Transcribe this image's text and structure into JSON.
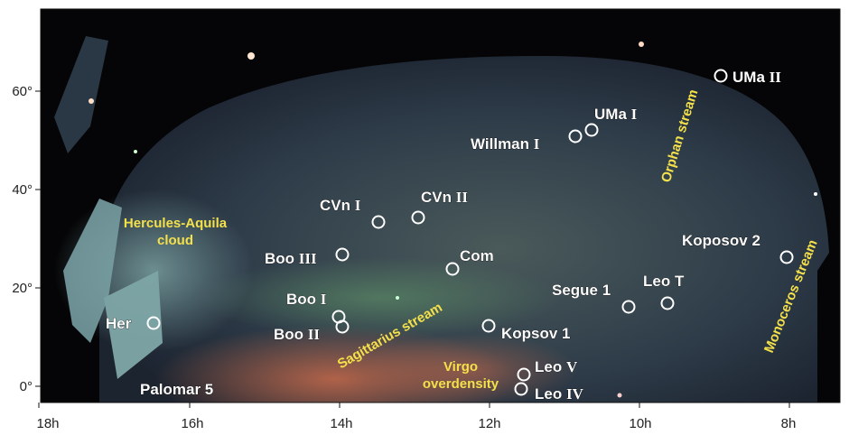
{
  "map": {
    "x_axis": {
      "ticks": [
        "18h",
        "16h",
        "14h",
        "12h",
        "10h",
        "8h"
      ]
    },
    "y_axis": {
      "ticks": [
        "0°",
        "20°",
        "40°",
        "60°"
      ]
    },
    "colors": {
      "background": "#050507",
      "sky_glow": "#3a4a55",
      "label_white": "#ffffff",
      "label_yellow": "#f3e04a",
      "circle": "#ffffff"
    },
    "objects": [
      {
        "name": "UMa",
        "numeral": "II"
      },
      {
        "name": "UMa",
        "numeral": "I"
      },
      {
        "name": "Willman",
        "numeral": "I"
      },
      {
        "name": "CVn",
        "numeral": "I"
      },
      {
        "name": "CVn",
        "numeral": "II"
      },
      {
        "name": "Boo",
        "numeral": "III"
      },
      {
        "name": "Com",
        "numeral": ""
      },
      {
        "name": "Koposov 2",
        "numeral": ""
      },
      {
        "name": "Boo",
        "numeral": "I"
      },
      {
        "name": "Boo",
        "numeral": "II"
      },
      {
        "name": "Segue 1",
        "numeral": ""
      },
      {
        "name": "Leo T",
        "numeral": ""
      },
      {
        "name": "Her",
        "numeral": ""
      },
      {
        "name": "Kopsov 1",
        "numeral": ""
      },
      {
        "name": "Leo",
        "numeral": "V"
      },
      {
        "name": "Leo",
        "numeral": "IV"
      },
      {
        "name": "Palomar 5",
        "numeral": ""
      }
    ],
    "structures": [
      {
        "lines": [
          "Hercules-Aquila",
          "cloud"
        ]
      },
      {
        "lines": [
          "Orphan stream"
        ]
      },
      {
        "lines": [
          "Sagittarius stream"
        ]
      },
      {
        "lines": [
          "Virgo",
          "overdensity"
        ]
      },
      {
        "lines": [
          "Monoceros stream"
        ]
      }
    ]
  }
}
